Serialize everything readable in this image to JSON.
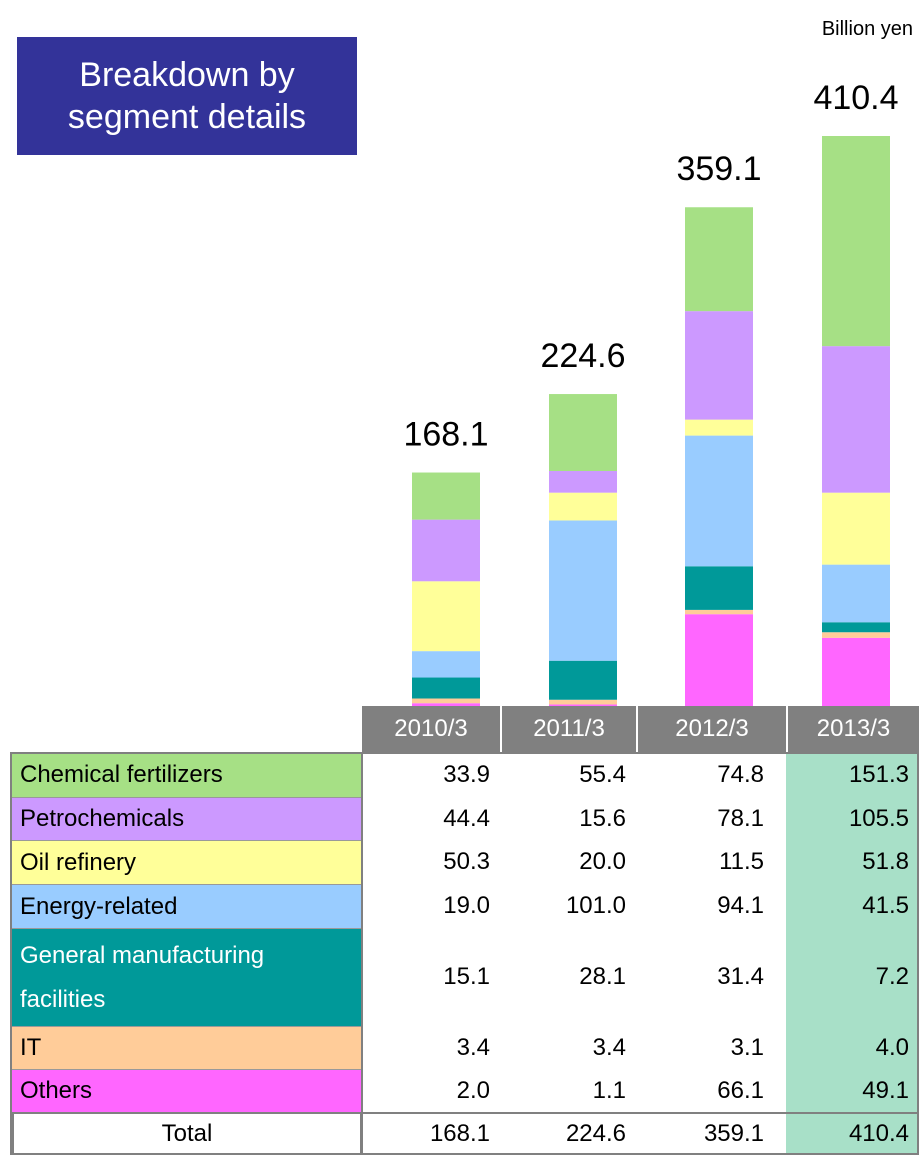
{
  "chart_data": {
    "type": "stacked_bar_table",
    "title": "Breakdown by segment details",
    "unit": "Billion yen",
    "categories": [
      "2010/3",
      "2011/3",
      "2012/3",
      "2013/3"
    ],
    "series": [
      {
        "name": "Chemical fertilizers",
        "color": "#a6e085",
        "values": [
          33.9,
          55.4,
          74.8,
          151.3
        ],
        "value_labels": [
          "33.9",
          "55.4",
          "74.8",
          "151.3"
        ]
      },
      {
        "name": "Petrochemicals",
        "color": "#cc99ff",
        "values": [
          44.4,
          15.6,
          78.1,
          105.5
        ],
        "value_labels": [
          "44.4",
          "15.6",
          "78.1",
          "105.5"
        ]
      },
      {
        "name": "Oil refinery",
        "color": "#ffff99",
        "values": [
          50.3,
          20.0,
          11.5,
          51.8
        ],
        "value_labels": [
          "50.3",
          "20.0",
          "11.5",
          "51.8"
        ]
      },
      {
        "name": "Energy-related",
        "color": "#99ccff",
        "values": [
          19.0,
          101.0,
          94.1,
          41.5
        ],
        "value_labels": [
          "19.0",
          "101.0",
          "94.1",
          "41.5"
        ]
      },
      {
        "name": "General manufacturing facilities",
        "color": "#009999",
        "values": [
          15.1,
          28.1,
          31.4,
          7.2
        ],
        "value_labels": [
          "15.1",
          "28.1",
          "31.4",
          "7.2"
        ]
      },
      {
        "name": "IT",
        "color": "#ffcc99",
        "values": [
          3.4,
          3.4,
          3.1,
          4.0
        ],
        "value_labels": [
          "3.4",
          "3.4",
          "3.1",
          "4.0"
        ]
      },
      {
        "name": "Others",
        "color": "#ff66ff",
        "values": [
          2.0,
          1.1,
          66.1,
          49.1
        ],
        "value_labels": [
          "2.0",
          "1.1",
          "66.1",
          "49.1"
        ]
      }
    ],
    "total_label": "Total",
    "totals": [
      168.1,
      224.6,
      359.1,
      410.4
    ],
    "header_color": "#808080",
    "highlight_color": "#a8e0c8"
  }
}
